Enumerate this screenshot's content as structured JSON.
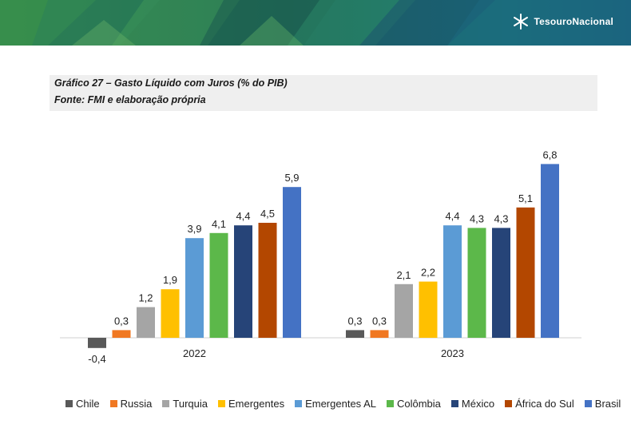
{
  "header": {
    "logo_text": "TesouroNacional",
    "logo_icon": "tesouro-star-icon",
    "colors": {
      "banner_dark": "#1e5c4c",
      "banner_mid": "#3d8f4a",
      "banner_light": "#2a8fb0"
    }
  },
  "figure": {
    "title": "Gráfico 27 – Gasto Líquido com Juros  (% do PIB)",
    "source": "Fonte: FMI e elaboração própria"
  },
  "chart_data": {
    "type": "bar",
    "categories": [
      "2022",
      "2023"
    ],
    "series": [
      {
        "name": "Chile",
        "values": [
          -0.4,
          0.3
        ],
        "labels": [
          "-0,4",
          "0,3"
        ],
        "color": "#595959"
      },
      {
        "name": "Russia",
        "values": [
          0.3,
          0.3
        ],
        "labels": [
          "0,3",
          "0,3"
        ],
        "color": "#f07822"
      },
      {
        "name": "Turquia",
        "values": [
          1.2,
          2.1
        ],
        "labels": [
          "1,2",
          "2,1"
        ],
        "color": "#a5a5a5"
      },
      {
        "name": "Emergentes",
        "values": [
          1.9,
          2.2
        ],
        "labels": [
          "1,9",
          "2,2"
        ],
        "color": "#ffc000"
      },
      {
        "name": "Emergentes AL",
        "values": [
          3.9,
          4.4
        ],
        "labels": [
          "3,9",
          "4,4"
        ],
        "color": "#5b9bd5"
      },
      {
        "name": "Colômbia",
        "values": [
          4.1,
          4.3
        ],
        "labels": [
          "4,1",
          "4,3"
        ],
        "color": "#5cb84a"
      },
      {
        "name": "México",
        "values": [
          4.4,
          4.3
        ],
        "labels": [
          "4,4",
          "4,3"
        ],
        "color": "#264478"
      },
      {
        "name": "África do Sul",
        "values": [
          4.5,
          5.1
        ],
        "labels": [
          "4,5",
          "5,1"
        ],
        "color": "#b34700"
      },
      {
        "name": "Brasil",
        "values": [
          5.9,
          6.8
        ],
        "labels": [
          "5,9",
          "6,8"
        ],
        "color": "#4472c4"
      }
    ],
    "ylim": [
      -0.4,
      7.0
    ],
    "grid": false,
    "legend": "bottom",
    "xlabel": "",
    "ylabel": ""
  }
}
